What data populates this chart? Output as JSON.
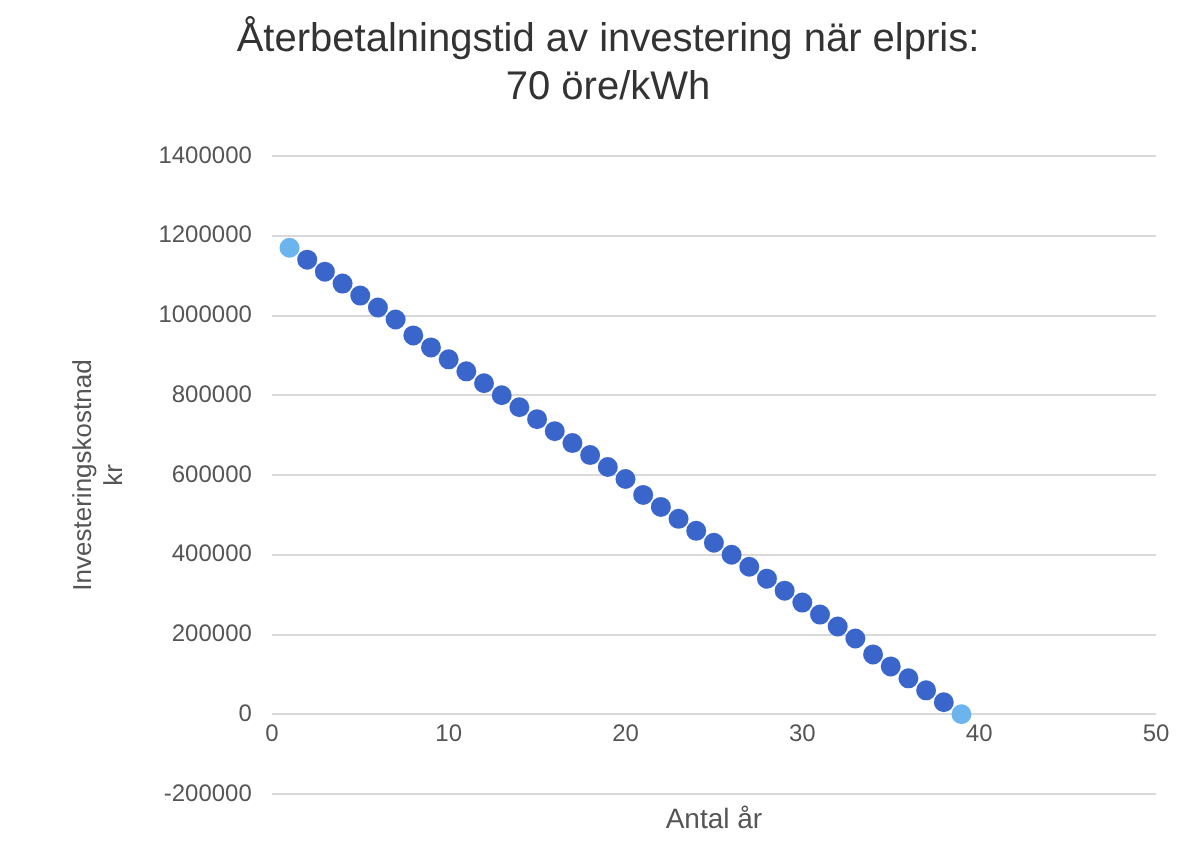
{
  "chart_data": {
    "type": "scatter",
    "title": [
      "Återbetalningstid av investering när elpris:",
      "70 öre/kWh"
    ],
    "xlabel": "Antal år",
    "ylabel": [
      "Investeringskostnad",
      "kr"
    ],
    "x": [
      1,
      2,
      3,
      4,
      5,
      6,
      7,
      8,
      9,
      10,
      11,
      12,
      13,
      14,
      15,
      16,
      17,
      18,
      19,
      20,
      21,
      22,
      23,
      24,
      25,
      26,
      27,
      28,
      29,
      30,
      31,
      32,
      33,
      34,
      35,
      36,
      37,
      38,
      39
    ],
    "values": [
      1170000,
      1140000,
      1110000,
      1080000,
      1050000,
      1020000,
      990000,
      950000,
      920000,
      890000,
      860000,
      830000,
      800000,
      770000,
      740000,
      710000,
      680000,
      650000,
      620000,
      590000,
      550000,
      520000,
      490000,
      460000,
      430000,
      400000,
      370000,
      340000,
      310000,
      280000,
      250000,
      220000,
      190000,
      150000,
      120000,
      90000,
      60000,
      30000,
      0
    ],
    "colors": [
      "#6cb4ee",
      "#3a66cc",
      "#3a66cc",
      "#3a66cc",
      "#3a66cc",
      "#3a66cc",
      "#3a66cc",
      "#3a66cc",
      "#3a66cc",
      "#3a66cc",
      "#3a66cc",
      "#3a66cc",
      "#3a66cc",
      "#3a66cc",
      "#3a66cc",
      "#3a66cc",
      "#3a66cc",
      "#3a66cc",
      "#3a66cc",
      "#3a66cc",
      "#3a66cc",
      "#3a66cc",
      "#3a66cc",
      "#3a66cc",
      "#3a66cc",
      "#3a66cc",
      "#3a66cc",
      "#3a66cc",
      "#3a66cc",
      "#3a66cc",
      "#3a66cc",
      "#3a66cc",
      "#3a66cc",
      "#3a66cc",
      "#3a66cc",
      "#3a66cc",
      "#3a66cc",
      "#3a66cc",
      "#6cb4ee"
    ],
    "xlim": [
      0,
      50
    ],
    "xticks": [
      0,
      10,
      20,
      30,
      40,
      50
    ],
    "ylim": [
      -200000,
      1400000
    ],
    "yticks": [
      -200000,
      0,
      200000,
      400000,
      600000,
      800000,
      1000000,
      1200000,
      1400000
    ],
    "grid": "y",
    "marker": "circle"
  }
}
